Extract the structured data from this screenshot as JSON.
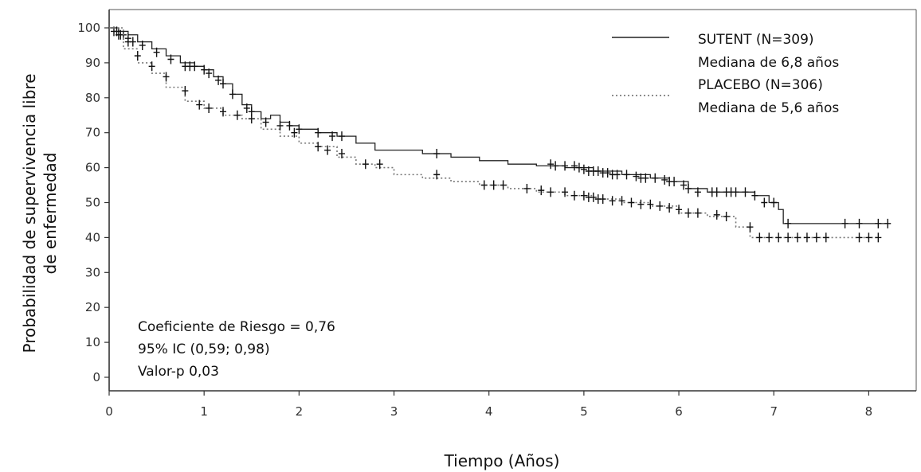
{
  "chart_data": {
    "type": "line",
    "title": "",
    "xlabel": "Tiempo (Años)",
    "ylabel": [
      "Probabilidad de supervivencia libre",
      "de enfermedad"
    ],
    "xlim": [
      0,
      8.5
    ],
    "ylim": [
      0,
      100
    ],
    "xticks": [
      0,
      1,
      2,
      3,
      4,
      5,
      6,
      7,
      8
    ],
    "yticks": [
      0,
      10,
      20,
      30,
      40,
      50,
      60,
      70,
      80,
      90,
      100
    ],
    "grid": false,
    "legend_position": "top-right",
    "series": [
      {
        "name": "SUTENT (N=309)",
        "median_label": "Mediana de 6,8 años",
        "line_style": "solid",
        "color": "#222222",
        "x": [
          0,
          0.1,
          0.2,
          0.3,
          0.45,
          0.6,
          0.75,
          0.9,
          1.0,
          1.1,
          1.2,
          1.3,
          1.4,
          1.5,
          1.6,
          1.7,
          1.8,
          1.9,
          2.0,
          2.2,
          2.4,
          2.6,
          2.8,
          3.0,
          3.3,
          3.6,
          3.9,
          4.2,
          4.5,
          4.8,
          5.1,
          5.4,
          5.7,
          5.9,
          6.1,
          6.3,
          6.5,
          6.8,
          6.95,
          7.05,
          7.1,
          7.5,
          8.0,
          8.2
        ],
        "y": [
          100,
          99,
          98,
          96,
          94,
          92,
          90,
          89,
          88,
          86,
          84,
          81,
          78,
          76,
          74,
          75,
          73,
          72,
          71,
          70,
          69,
          67,
          65,
          65,
          64,
          63,
          62,
          61,
          60.5,
          60,
          59,
          58,
          57,
          56,
          54,
          53,
          53,
          52,
          50,
          48,
          44,
          44,
          44,
          44
        ],
        "censor_x": [
          0.05,
          0.08,
          0.12,
          0.15,
          0.2,
          0.25,
          0.35,
          0.5,
          0.65,
          0.8,
          0.85,
          0.9,
          1.0,
          1.05,
          1.15,
          1.2,
          1.3,
          1.45,
          1.5,
          1.9,
          2.0,
          2.2,
          2.35,
          2.45,
          3.45,
          4.65,
          4.7,
          4.8,
          4.9,
          4.95,
          5.0,
          5.05,
          5.1,
          5.15,
          5.2,
          5.25,
          5.3,
          5.35,
          5.45,
          5.55,
          5.6,
          5.65,
          5.75,
          5.85,
          5.9,
          5.95,
          6.05,
          6.1,
          6.2,
          6.35,
          6.4,
          6.5,
          6.55,
          6.6,
          6.7,
          6.8,
          6.9,
          7.0,
          7.15,
          7.75,
          7.9,
          8.1,
          8.2
        ],
        "censor_y": [
          99,
          99,
          98,
          98,
          97,
          96,
          95,
          93,
          91,
          89,
          89,
          89,
          88,
          87,
          85,
          84,
          81,
          77,
          76,
          72,
          71,
          70,
          69,
          69,
          64,
          61,
          60.5,
          60.5,
          60.5,
          60,
          59.5,
          59,
          59,
          59,
          58.5,
          58.5,
          58,
          58,
          58,
          57.5,
          57,
          57,
          57,
          56.5,
          56,
          56,
          55,
          54,
          53,
          53,
          53,
          53,
          53,
          53,
          53,
          52,
          50,
          50,
          44,
          44,
          44,
          44,
          44
        ]
      },
      {
        "name": "PLACEBO (N=306)",
        "median_label": "Mediana de 5,6 años",
        "line_style": "dotted",
        "color": "#444444",
        "x": [
          0,
          0.15,
          0.3,
          0.45,
          0.6,
          0.8,
          1.0,
          1.2,
          1.4,
          1.6,
          1.8,
          2.0,
          2.2,
          2.4,
          2.6,
          2.8,
          3.0,
          3.3,
          3.6,
          3.9,
          4.2,
          4.5,
          4.8,
          5.1,
          5.4,
          5.7,
          6.0,
          6.3,
          6.6,
          6.75,
          7.0,
          7.6,
          8.1
        ],
        "y": [
          100,
          94,
          90,
          87,
          83,
          79,
          77,
          75,
          74,
          71,
          69,
          67,
          66,
          63,
          61,
          60,
          58,
          57,
          56,
          55,
          54,
          53,
          52,
          51,
          50,
          49,
          47,
          46,
          43,
          40,
          40,
          40,
          40
        ],
        "censor_x": [
          0.1,
          0.2,
          0.3,
          0.45,
          0.6,
          0.8,
          0.95,
          1.05,
          1.2,
          1.35,
          1.5,
          1.65,
          1.8,
          1.95,
          2.2,
          2.3,
          2.45,
          2.7,
          2.85,
          3.45,
          3.95,
          4.05,
          4.15,
          4.4,
          4.55,
          4.65,
          4.8,
          4.9,
          5.0,
          5.05,
          5.1,
          5.15,
          5.2,
          5.3,
          5.4,
          5.5,
          5.6,
          5.7,
          5.8,
          5.9,
          6.0,
          6.1,
          6.2,
          6.4,
          6.5,
          6.75,
          6.85,
          6.95,
          7.05,
          7.15,
          7.25,
          7.35,
          7.45,
          7.55,
          7.9,
          8.0,
          8.1
        ],
        "censor_y": [
          98,
          96,
          92,
          89,
          86,
          82,
          78,
          77,
          76,
          75,
          74,
          73,
          72,
          70,
          66,
          65,
          64,
          61,
          61,
          58,
          55,
          55,
          55,
          54,
          53.5,
          53,
          53,
          52,
          52,
          51.5,
          51.5,
          51,
          51,
          50.5,
          50.5,
          50,
          49.5,
          49.5,
          49,
          48.5,
          48,
          47,
          47,
          46.5,
          46,
          43,
          40,
          40,
          40,
          40,
          40,
          40,
          40,
          40,
          40,
          40,
          40
        ]
      }
    ],
    "annotations": [
      "Coeficiente de Riesgo = 0,76",
      "95% IC (0,59; 0,98)",
      "Valor-p 0,03"
    ]
  }
}
